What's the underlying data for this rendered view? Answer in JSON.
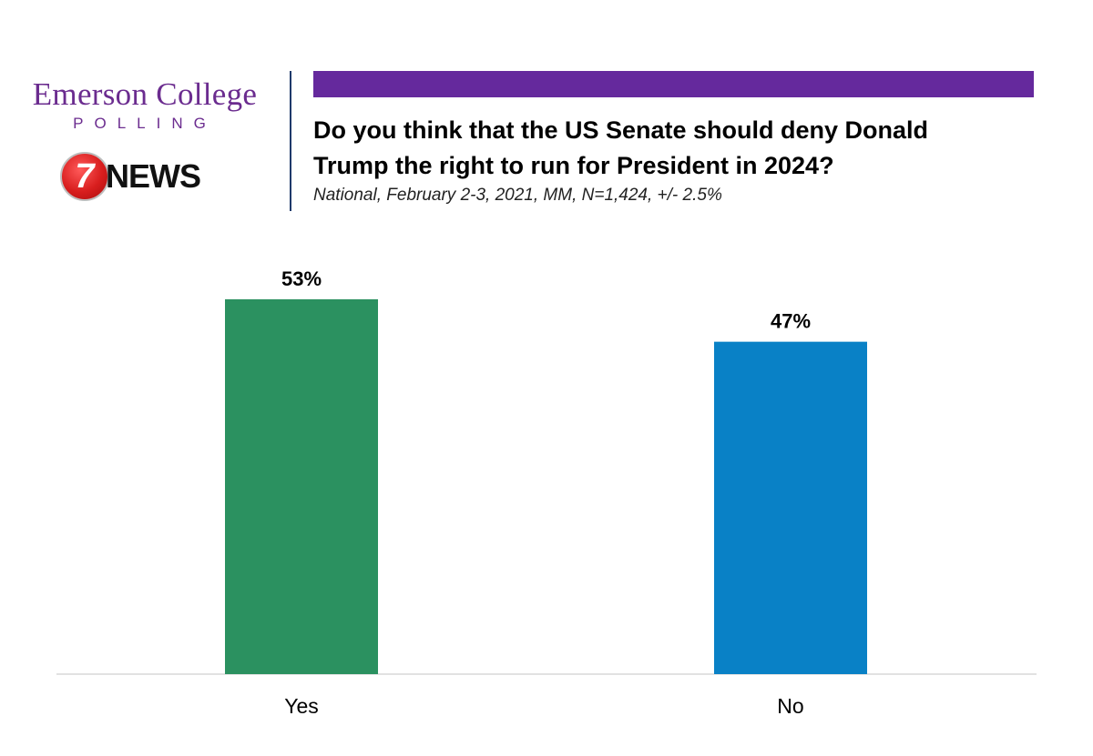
{
  "header": {
    "brand_name": "Emerson College",
    "brand_sub": "POLLING",
    "partner_badge": "7",
    "partner_name": "NEWS",
    "title": "Do you think that the US Senate should deny Donald Trump the right to run for President in 2024?",
    "subtitle": "National, February 2-3, 2021, MM, N=1,424, +/- 2.5%",
    "accent_color": "#65299d"
  },
  "chart_data": {
    "type": "bar",
    "title": "Do you think that the US Senate should deny Donald Trump the right to run for President in 2024?",
    "categories": [
      "Yes",
      "No"
    ],
    "values": [
      53,
      47
    ],
    "data_labels": [
      "53%",
      "47%"
    ],
    "colors": [
      "#2b9160",
      "#0981c6"
    ],
    "xlabel": "",
    "ylabel": "",
    "ylim": [
      0,
      60
    ],
    "grid": false,
    "legend": "none"
  }
}
